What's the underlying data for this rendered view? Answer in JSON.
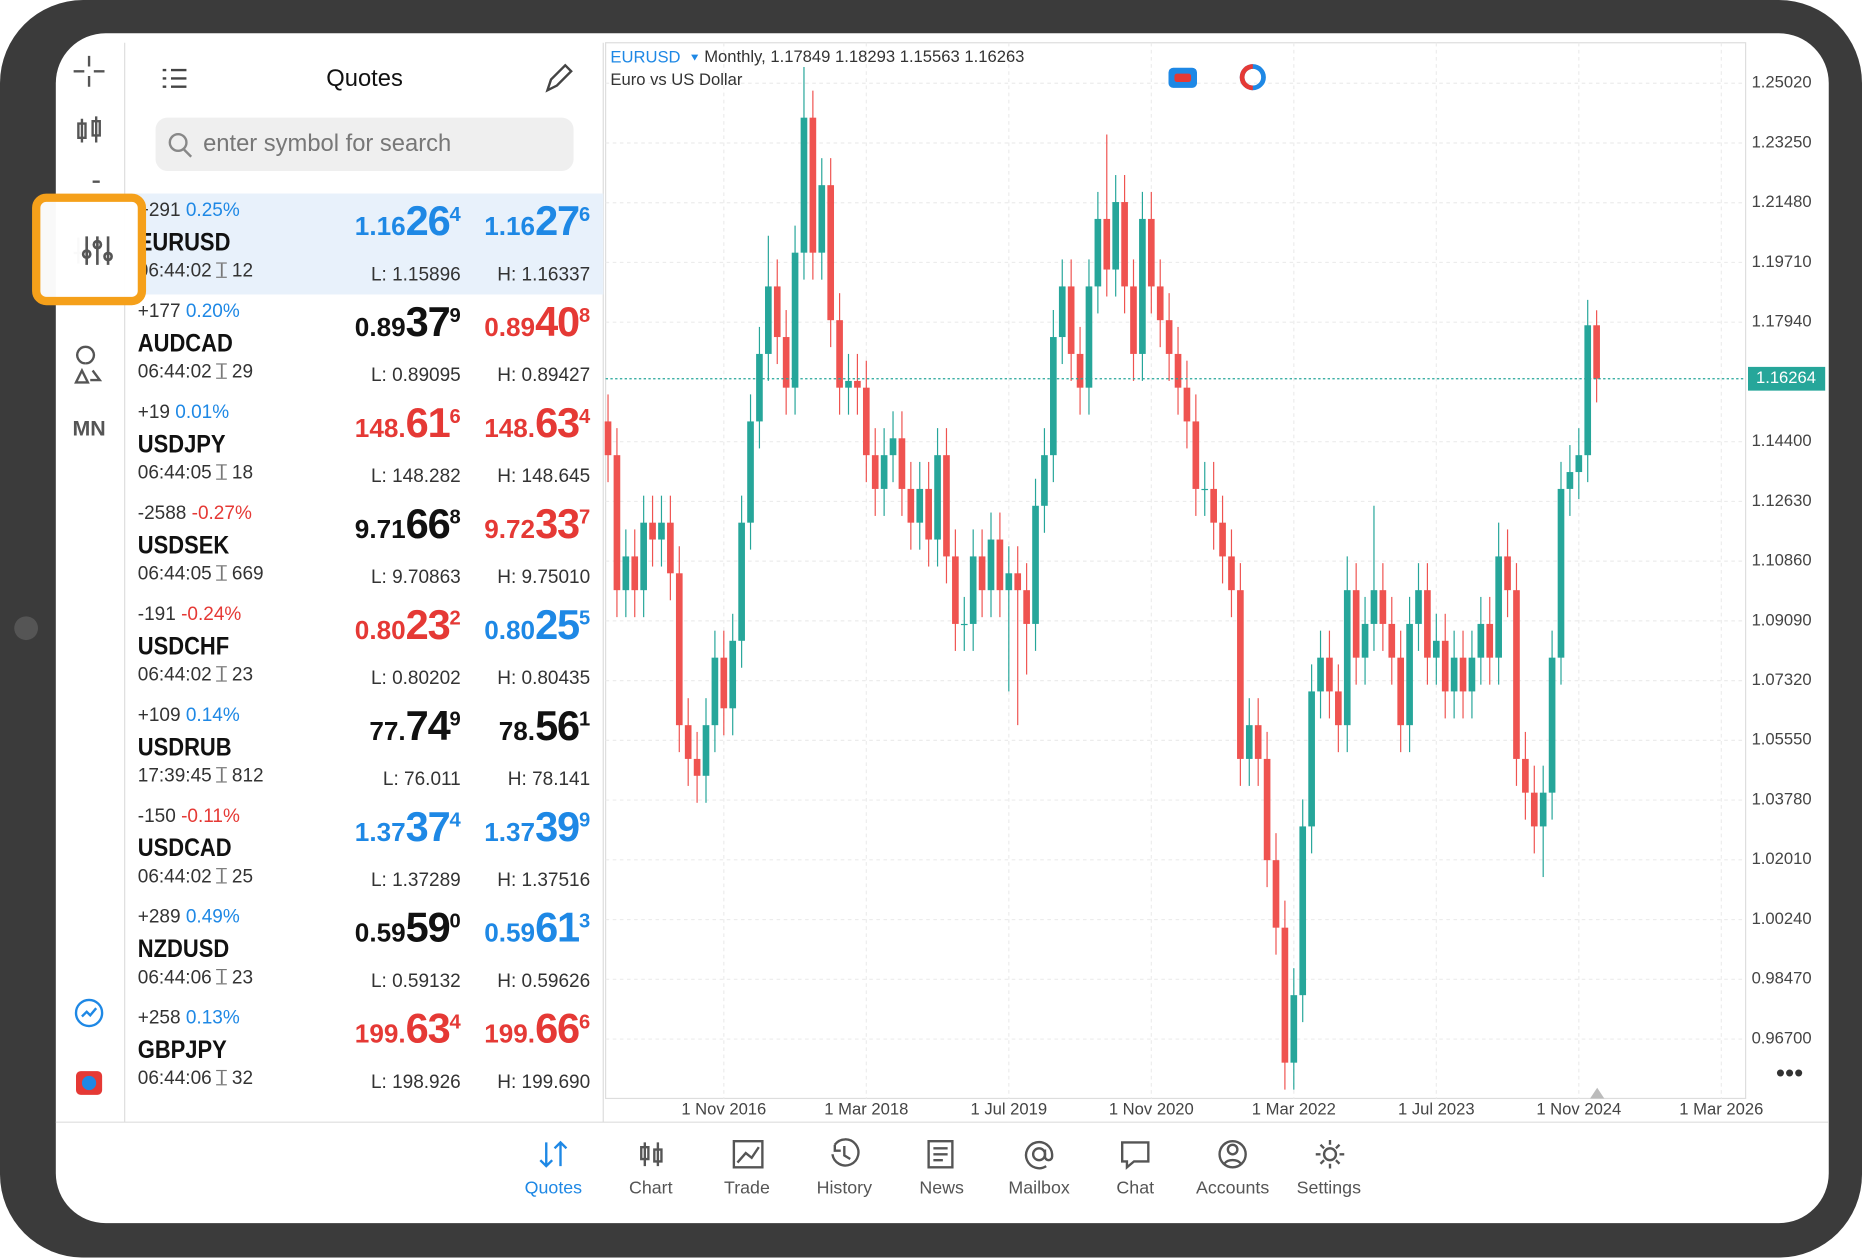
{
  "quotes_panel": {
    "title": "Quotes",
    "search_placeholder": "enter symbol for search",
    "rows": [
      {
        "change": "+291",
        "percent": "0.25%",
        "symbol": "EURUSD",
        "time": "06:44:02",
        "spread": "12",
        "bid": [
          "1.16",
          "26",
          "4"
        ],
        "bid_color": "#1e88e5",
        "ask": [
          "1.16",
          "27",
          "6"
        ],
        "ask_color": "#1e88e5",
        "low": "L: 1.15896",
        "high": "H: 1.16337"
      },
      {
        "change": "+177",
        "percent": "0.20%",
        "symbol": "AUDCAD",
        "time": "06:44:02",
        "spread": "29",
        "bid": [
          "0.89",
          "37",
          "9"
        ],
        "bid_color": "#111111",
        "ask": [
          "0.89",
          "40",
          "8"
        ],
        "ask_color": "#e53935",
        "low": "L: 0.89095",
        "high": "H: 0.89427"
      },
      {
        "change": "+19",
        "percent": "0.01%",
        "symbol": "USDJPY",
        "time": "06:44:05",
        "spread": "18",
        "bid": [
          "148.",
          "61",
          "6"
        ],
        "bid_color": "#e53935",
        "ask": [
          "148.",
          "63",
          "4"
        ],
        "ask_color": "#e53935",
        "low": "L: 148.282",
        "high": "H: 148.645"
      },
      {
        "change": "-2588",
        "percent": "-0.27%",
        "symbol": "USDSEK",
        "time": "06:44:05",
        "spread": "669",
        "bid": [
          "9.71",
          "66",
          "8"
        ],
        "bid_color": "#111111",
        "ask": [
          "9.72",
          "33",
          "7"
        ],
        "ask_color": "#e53935",
        "low": "L: 9.70863",
        "high": "H: 9.75010"
      },
      {
        "change": "-191",
        "percent": "-0.24%",
        "symbol": "USDCHF",
        "time": "06:44:02",
        "spread": "23",
        "bid": [
          "0.80",
          "23",
          "2"
        ],
        "bid_color": "#e53935",
        "ask": [
          "0.80",
          "25",
          "5"
        ],
        "ask_color": "#1e88e5",
        "low": "L: 0.80202",
        "high": "H: 0.80435"
      },
      {
        "change": "+109",
        "percent": "0.14%",
        "symbol": "USDRUB",
        "time": "17:39:45",
        "spread": "812",
        "bid": [
          "77.",
          "74",
          "9"
        ],
        "bid_color": "#111111",
        "ask": [
          "78.",
          "56",
          "1"
        ],
        "ask_color": "#111111",
        "low": "L: 76.011",
        "high": "H: 78.141"
      },
      {
        "change": "-150",
        "percent": "-0.11%",
        "symbol": "USDCAD",
        "time": "06:44:02",
        "spread": "25",
        "bid": [
          "1.37",
          "37",
          "4"
        ],
        "bid_color": "#1e88e5",
        "ask": [
          "1.37",
          "39",
          "9"
        ],
        "ask_color": "#1e88e5",
        "low": "L: 1.37289",
        "high": "H: 1.37516"
      },
      {
        "change": "+289",
        "percent": "0.49%",
        "symbol": "NZDUSD",
        "time": "06:44:06",
        "spread": "23",
        "bid": [
          "0.59",
          "59",
          "0"
        ],
        "bid_color": "#111111",
        "ask": [
          "0.59",
          "61",
          "3"
        ],
        "ask_color": "#1e88e5",
        "low": "L: 0.59132",
        "high": "H: 0.59626"
      },
      {
        "change": "+258",
        "percent": "0.13%",
        "symbol": "GBPJPY",
        "time": "06:44:06",
        "spread": "32",
        "bid": [
          "199.",
          "63",
          "4"
        ],
        "bid_color": "#e53935",
        "ask": [
          "199.",
          "66",
          "6"
        ],
        "ask_color": "#e53935",
        "low": "L: 198.926",
        "high": "H: 199.690"
      }
    ]
  },
  "toolbar": {
    "timeframe_button": "MN"
  },
  "tabs": [
    "Quotes",
    "Chart",
    "Trade",
    "History",
    "News",
    "Mailbox",
    "Chat",
    "Accounts",
    "Settings"
  ],
  "chart_data": {
    "type": "candlestick",
    "symbol": "EURUSD",
    "timeframe": "Monthly,",
    "description": "Euro vs US Dollar",
    "up_color": "#26a69a",
    "down_color": "#ef5350",
    "grid": true,
    "open": [
      1.15,
      1.14,
      1.1,
      1.11,
      1.1,
      1.12,
      1.115,
      1.12,
      1.105,
      1.06,
      1.05,
      1.045,
      1.06,
      1.08,
      1.065,
      1.085,
      1.12,
      1.15,
      1.17,
      1.19,
      1.175,
      1.16,
      1.2,
      1.24,
      1.2,
      1.22,
      1.18,
      1.16,
      1.162,
      1.16,
      1.14,
      1.13,
      1.14,
      1.145,
      1.13,
      1.12,
      1.13,
      1.115,
      1.14,
      1.11,
      1.09,
      1.09,
      1.11,
      1.1,
      1.115,
      1.1,
      1.105,
      1.1,
      1.09,
      1.125,
      1.14,
      1.175,
      1.19,
      1.17,
      1.16,
      1.19,
      1.21,
      1.195,
      1.215,
      1.19,
      1.17,
      1.21,
      1.19,
      1.18,
      1.17,
      1.16,
      1.15,
      1.13,
      1.13,
      1.12,
      1.11,
      1.1,
      1.05,
      1.06,
      1.05,
      1.02,
      1.0,
      0.96,
      0.98,
      1.03,
      1.07,
      1.08,
      1.07,
      1.06,
      1.1,
      1.08,
      1.09,
      1.1,
      1.09,
      1.08,
      1.06,
      1.09,
      1.1,
      1.08,
      1.085,
      1.07,
      1.08,
      1.07,
      1.08,
      1.09,
      1.08,
      1.11,
      1.1,
      1.05,
      1.04,
      1.03,
      1.04,
      1.08,
      1.13,
      1.135,
      1.14,
      1.17849
    ],
    "high": [
      1.158,
      1.148,
      1.118,
      1.118,
      1.128,
      1.128,
      1.128,
      1.128,
      1.113,
      1.068,
      1.058,
      1.068,
      1.088,
      1.088,
      1.093,
      1.128,
      1.158,
      1.178,
      1.205,
      1.198,
      1.183,
      1.208,
      1.255,
      1.248,
      1.228,
      1.228,
      1.188,
      1.17,
      1.17,
      1.168,
      1.148,
      1.148,
      1.153,
      1.153,
      1.138,
      1.138,
      1.138,
      1.148,
      1.148,
      1.118,
      1.098,
      1.118,
      1.118,
      1.123,
      1.123,
      1.113,
      1.113,
      1.108,
      1.133,
      1.148,
      1.183,
      1.198,
      1.198,
      1.178,
      1.198,
      1.218,
      1.235,
      1.223,
      1.223,
      1.198,
      1.218,
      1.218,
      1.198,
      1.188,
      1.178,
      1.168,
      1.158,
      1.138,
      1.138,
      1.128,
      1.118,
      1.108,
      1.068,
      1.068,
      1.058,
      1.028,
      1.008,
      0.988,
      1.038,
      1.078,
      1.088,
      1.088,
      1.078,
      1.11,
      1.108,
      1.098,
      1.125,
      1.108,
      1.098,
      1.088,
      1.098,
      1.108,
      1.108,
      1.093,
      1.093,
      1.088,
      1.088,
      1.088,
      1.098,
      1.098,
      1.12,
      1.118,
      1.108,
      1.058,
      1.048,
      1.048,
      1.088,
      1.138,
      1.143,
      1.148,
      1.186,
      1.18293
    ],
    "low": [
      1.132,
      1.092,
      1.092,
      1.092,
      1.092,
      1.107,
      1.107,
      1.097,
      1.052,
      1.042,
      1.037,
      1.037,
      1.052,
      1.057,
      1.057,
      1.077,
      1.112,
      1.142,
      1.162,
      1.167,
      1.152,
      1.152,
      1.192,
      1.192,
      1.192,
      1.172,
      1.152,
      1.152,
      1.152,
      1.132,
      1.122,
      1.122,
      1.132,
      1.122,
      1.112,
      1.112,
      1.107,
      1.107,
      1.102,
      1.082,
      1.082,
      1.082,
      1.092,
      1.092,
      1.092,
      1.07,
      1.06,
      1.075,
      1.082,
      1.117,
      1.132,
      1.167,
      1.162,
      1.152,
      1.152,
      1.182,
      1.187,
      1.187,
      1.182,
      1.162,
      1.162,
      1.182,
      1.172,
      1.162,
      1.152,
      1.142,
      1.122,
      1.122,
      1.112,
      1.102,
      1.092,
      1.042,
      1.042,
      1.042,
      1.012,
      0.992,
      0.952,
      0.952,
      0.972,
      1.022,
      1.062,
      1.062,
      1.052,
      1.052,
      1.072,
      1.072,
      1.082,
      1.082,
      1.072,
      1.052,
      1.052,
      1.082,
      1.072,
      1.072,
      1.062,
      1.062,
      1.062,
      1.062,
      1.072,
      1.072,
      1.072,
      1.092,
      1.042,
      1.032,
      1.022,
      1.015,
      1.032,
      1.072,
      1.122,
      1.127,
      1.132,
      1.15563
    ],
    "close": [
      1.14,
      1.1,
      1.11,
      1.1,
      1.12,
      1.115,
      1.12,
      1.105,
      1.06,
      1.05,
      1.045,
      1.06,
      1.08,
      1.065,
      1.085,
      1.12,
      1.15,
      1.17,
      1.19,
      1.175,
      1.16,
      1.2,
      1.24,
      1.2,
      1.22,
      1.18,
      1.16,
      1.162,
      1.16,
      1.14,
      1.13,
      1.14,
      1.145,
      1.13,
      1.12,
      1.13,
      1.115,
      1.14,
      1.11,
      1.09,
      1.09,
      1.11,
      1.1,
      1.115,
      1.1,
      1.105,
      1.1,
      1.09,
      1.125,
      1.14,
      1.175,
      1.19,
      1.17,
      1.16,
      1.19,
      1.21,
      1.195,
      1.215,
      1.19,
      1.17,
      1.21,
      1.19,
      1.18,
      1.17,
      1.16,
      1.15,
      1.13,
      1.13,
      1.12,
      1.11,
      1.1,
      1.05,
      1.06,
      1.05,
      1.02,
      1.0,
      0.96,
      0.98,
      1.03,
      1.07,
      1.08,
      1.07,
      1.06,
      1.1,
      1.08,
      1.09,
      1.1,
      1.09,
      1.08,
      1.06,
      1.09,
      1.1,
      1.08,
      1.085,
      1.07,
      1.08,
      1.07,
      1.08,
      1.09,
      1.08,
      1.11,
      1.1,
      1.05,
      1.04,
      1.03,
      1.04,
      1.08,
      1.13,
      1.135,
      1.14,
      1.17849,
      1.16263
    ],
    "current_price": 1.16264,
    "current_price_color": "#26a69a",
    "xlim": [
      -0.27,
      127.73
    ],
    "xticks": [
      {
        "value": 13,
        "label": "1 Nov 2016"
      },
      {
        "value": 29,
        "label": "1 Mar 2018"
      },
      {
        "value": 45,
        "label": "1 Jul 2019"
      },
      {
        "value": 61,
        "label": "1 Nov 2020"
      },
      {
        "value": 77,
        "label": "1 Mar 2022"
      },
      {
        "value": 93,
        "label": "1 Jul 2023"
      },
      {
        "value": 109,
        "label": "1 Nov 2024"
      },
      {
        "value": 125,
        "label": "1 Mar 2026"
      }
    ],
    "ylim": [
      0.9494,
      1.2622
    ],
    "yticks": [
      {
        "value": 0.967,
        "label": "0.96700"
      },
      {
        "value": 0.9847,
        "label": "0.98470"
      },
      {
        "value": 1.0024,
        "label": "1.00240"
      },
      {
        "value": 1.0201,
        "label": "1.02010"
      },
      {
        "value": 1.0378,
        "label": "1.03780"
      },
      {
        "value": 1.0555,
        "label": "1.05550"
      },
      {
        "value": 1.0732,
        "label": "1.07320"
      },
      {
        "value": 1.0909,
        "label": "1.09090"
      },
      {
        "value": 1.1086,
        "label": "1.10860"
      },
      {
        "value": 1.1263,
        "label": "1.12630"
      },
      {
        "value": 1.144,
        "label": "1.14400"
      },
      {
        "value": 1.1794,
        "label": "1.17940"
      },
      {
        "value": 1.1971,
        "label": "1.19710"
      },
      {
        "value": 1.2148,
        "label": "1.21480"
      },
      {
        "value": 1.2325,
        "label": "1.23250"
      },
      {
        "value": 1.2502,
        "label": "1.25020"
      }
    ]
  }
}
